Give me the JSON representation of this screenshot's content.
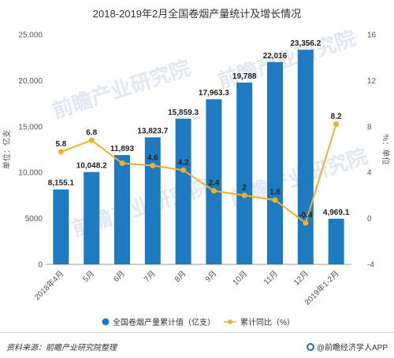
{
  "chart_data": {
    "type": "bar",
    "title": "2018-2019年2月全国卷烟产量统计及增长情况",
    "categories": [
      "2018年4月",
      "5月",
      "6月",
      "7月",
      "8月",
      "9月",
      "10月",
      "11月",
      "12月",
      "2019年1-2月"
    ],
    "series": [
      {
        "name": "全国卷烟产量累计值（亿支）",
        "type": "bar",
        "axis": "left",
        "color": "#1f7bc1",
        "values": [
          8155.1,
          10048.2,
          11893,
          13823.7,
          15859.3,
          17963.3,
          19788,
          22016,
          23356.2,
          4969.1
        ],
        "labels": [
          "8,155.1",
          "10,048.2",
          "11,893",
          "13,823.7",
          "15,859.3",
          "17,963.3",
          "19,788",
          "22,016",
          "23,356.2",
          "4,969.1"
        ]
      },
      {
        "name": "累计同比（%）",
        "type": "line",
        "axis": "right",
        "color": "#f0b02a",
        "values": [
          5.8,
          6.8,
          4.8,
          4.6,
          4.2,
          2.4,
          2,
          1.6,
          -0.4,
          8.2
        ],
        "labels": [
          "5.8",
          "6.8",
          "",
          "4.6",
          "4.2",
          "2.4",
          "2",
          "1.6",
          "-0.4",
          "8.2"
        ]
      }
    ],
    "ylabel": "单位：亿支",
    "y2label": "%：单位",
    "ylim": [
      0,
      25000
    ],
    "yticks": [
      0,
      5000,
      10000,
      15000,
      20000,
      25000
    ],
    "ytick_labels": [
      "0",
      "5000",
      "10,000",
      "15,000",
      "20,000",
      "25,000"
    ],
    "y2lim": [
      -4,
      16
    ],
    "y2ticks": [
      -4,
      0,
      4,
      8,
      12,
      16
    ],
    "y2tick_labels": [
      "-4",
      "0",
      "4",
      "8",
      "12",
      "16"
    ],
    "legend_position": "bottom",
    "watermark": "前瞻产业研究院"
  },
  "footer": {
    "source": "资料来源：前瞻产业研究院整理",
    "brand": "@前瞻经济学人APP"
  }
}
